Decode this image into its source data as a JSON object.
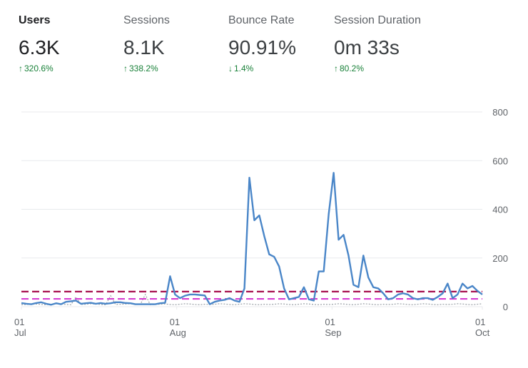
{
  "metrics": [
    {
      "label": "Users",
      "value": "6.3K",
      "change": "320.6%",
      "direction": "up",
      "active": true
    },
    {
      "label": "Sessions",
      "value": "8.1K",
      "change": "338.2%",
      "direction": "up",
      "active": false
    },
    {
      "label": "Bounce Rate",
      "value": "90.91%",
      "change": "1.4%",
      "direction": "down",
      "active": false
    },
    {
      "label": "Session Duration",
      "value": "0m 33s",
      "change": "80.2%",
      "direction": "up",
      "active": false
    }
  ],
  "colors": {
    "positive_change": "#188038",
    "main_line": "#4a86c8",
    "comparison_line": "#9aa0a6",
    "average_line_1": "#a50e4d",
    "average_line_2": "#d63fd1",
    "grid": "#e8eaed",
    "axis_text": "#5f6368"
  },
  "chart_data": {
    "type": "line",
    "title": "",
    "xlabel": "",
    "ylabel": "",
    "ylim": [
      0,
      800
    ],
    "y_ticks": [
      "800",
      "600",
      "400",
      "200",
      "0"
    ],
    "y_axis_side": "right",
    "grid": true,
    "x_ticks": [
      {
        "day": "01",
        "month": "Jul",
        "date": "2023-07-01"
      },
      {
        "day": "01",
        "month": "Aug",
        "date": "2023-08-01"
      },
      {
        "day": "01",
        "month": "Sep",
        "date": "2023-09-01"
      },
      {
        "day": "01",
        "month": "Oct",
        "date": "2023-10-01"
      }
    ],
    "x_start": "2023-07-01",
    "x_end": "2023-10-01",
    "series": [
      {
        "role": "current",
        "style": "solid",
        "values": [
          15,
          12,
          10,
          15,
          18,
          12,
          8,
          14,
          10,
          20,
          22,
          25,
          12,
          14,
          16,
          12,
          15,
          12,
          14,
          18,
          18,
          15,
          14,
          10,
          10,
          10,
          10,
          10,
          14,
          16,
          125,
          50,
          35,
          45,
          50,
          50,
          48,
          46,
          10,
          20,
          25,
          28,
          35,
          25,
          20,
          75,
          530,
          355,
          375,
          290,
          215,
          205,
          165,
          75,
          30,
          35,
          40,
          80,
          30,
          25,
          145,
          145,
          380,
          550,
          275,
          295,
          210,
          90,
          80,
          210,
          120,
          80,
          75,
          55,
          30,
          35,
          50,
          55,
          50,
          35,
          30,
          35,
          35,
          28,
          40,
          55,
          95,
          35,
          50,
          95,
          75,
          85,
          65,
          50
        ],
        "note": ""
      },
      {
        "role": "comparison",
        "style": "dotted",
        "values": [
          8,
          9,
          10,
          11,
          9,
          8,
          10,
          12,
          11,
          9,
          8,
          40,
          9,
          10,
          12,
          11,
          9,
          8,
          45,
          9,
          10,
          11,
          12,
          10,
          9,
          50,
          8,
          9,
          10,
          11,
          9,
          8,
          10,
          12,
          11,
          9,
          8,
          10,
          9,
          10,
          12,
          11,
          9,
          8,
          10,
          12,
          11,
          9,
          8,
          10,
          9,
          10,
          12,
          11,
          9,
          8,
          10,
          12,
          11,
          9,
          8,
          10,
          9,
          10,
          12,
          11,
          9,
          8,
          10,
          12,
          11,
          9,
          8,
          10,
          9,
          10,
          12,
          11,
          9,
          8,
          10,
          12,
          11,
          9,
          8,
          10,
          9,
          10,
          12,
          11,
          9,
          8,
          10,
          12
        ]
      },
      {
        "role": "average-1",
        "style": "dashed",
        "values": [
          62
        ]
      },
      {
        "role": "average-2",
        "style": "dashed",
        "values": [
          32
        ]
      }
    ]
  }
}
